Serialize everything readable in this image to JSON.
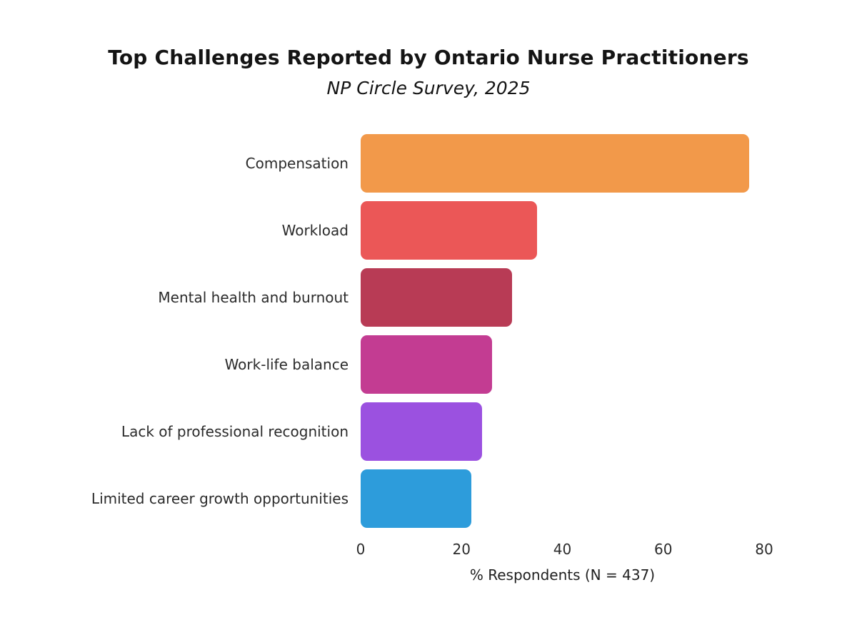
{
  "chart_data": {
    "type": "bar",
    "orientation": "horizontal",
    "title": "Top Challenges Reported by Ontario Nurse Practitioners",
    "subtitle": "NP Circle Survey, 2025",
    "categories": [
      "Compensation",
      "Workload",
      "Mental health and burnout",
      "Work-life balance",
      "Lack of professional recognition",
      "Limited career growth opportunities"
    ],
    "values": [
      77,
      35,
      30,
      26,
      24,
      22
    ],
    "bar_colors": [
      "#F2994A",
      "#EB5757",
      "#B83B55",
      "#C33C92",
      "#9B51E0",
      "#2D9CDB"
    ],
    "xlabel": "% Respondents (N = 437)",
    "xticks": [
      0,
      20,
      40,
      60,
      80
    ],
    "xlim": [
      0,
      80
    ],
    "grid": false,
    "legend": "none",
    "background_color": "#ffffff",
    "text_color": "#1f1f1f"
  }
}
